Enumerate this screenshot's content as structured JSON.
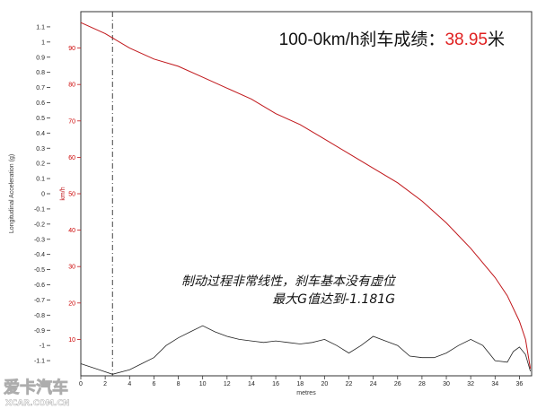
{
  "headline": {
    "prefix": "100-0km/h刹车成绩：",
    "value": "38.95",
    "suffix": "米"
  },
  "annotation": {
    "line1": "制动过程非常线性，刹车基本没有虚位",
    "line2": "最大G值达到-1.181G"
  },
  "watermark": {
    "logo": "爱卡汽车",
    "site": "XCAR.COM.CN"
  },
  "colors": {
    "speed": "#c0161a",
    "accel": "#222222",
    "accent_text": "#e02020",
    "marker": "#444444"
  },
  "chart_data": {
    "type": "line",
    "xlabel": "metres",
    "ylabel_left": "Longitudinal Acceleration (g)",
    "ylabel_right": "km/h",
    "xlim": [
      0,
      37
    ],
    "ylim_left": [
      -1.2,
      1.2
    ],
    "ylim_right": [
      0,
      100
    ],
    "x_ticks": [
      0,
      2,
      4,
      6,
      8,
      10,
      12,
      14,
      16,
      18,
      20,
      22,
      24,
      26,
      28,
      30,
      32,
      34,
      36
    ],
    "left_ticks": [
      "1.1",
      "1",
      "0.9",
      "0.8",
      "0.7",
      "0.6",
      "0.5",
      "0.4",
      "0.3",
      "0.2",
      "0.1",
      "0",
      "-0.1",
      "-0.2",
      "-0.3",
      "-0.4",
      "-0.5",
      "-0.6",
      "-0.7",
      "-0.8",
      "-0.9",
      "-1",
      "-1.1"
    ],
    "right_ticks": [
      "90",
      "80",
      "70",
      "60",
      "50",
      "40",
      "30",
      "20",
      "10"
    ],
    "marker_x": 2.6,
    "grid": false,
    "series": [
      {
        "axis": "right",
        "x": [
          0,
          2,
          4,
          6,
          8,
          10,
          12,
          14,
          16,
          18,
          20,
          22,
          24,
          26,
          28,
          30,
          32,
          34,
          35,
          36,
          36.5,
          36.9
        ],
        "values": [
          97,
          94,
          90,
          87,
          85,
          82,
          79,
          76,
          72,
          69,
          65,
          61,
          57,
          53,
          48,
          42,
          35,
          27,
          22,
          15,
          10,
          2
        ]
      },
      {
        "axis": "left",
        "x": [
          0,
          1.5,
          2.6,
          4,
          5,
          6,
          7,
          8,
          9,
          10,
          11,
          12,
          13,
          14,
          15,
          16,
          17,
          18,
          19,
          20,
          21,
          22,
          23,
          24,
          25,
          26,
          27,
          28,
          29,
          30,
          31,
          32,
          33,
          34,
          35,
          35.5,
          36,
          36.5,
          36.9
        ],
        "values": [
          -1.12,
          -1.16,
          -1.19,
          -1.16,
          -1.12,
          -1.08,
          -1.0,
          -0.95,
          -0.91,
          -0.87,
          -0.91,
          -0.94,
          -0.96,
          -0.97,
          -0.98,
          -0.97,
          -0.98,
          -0.99,
          -0.98,
          -0.96,
          -1.0,
          -1.05,
          -1.0,
          -0.94,
          -0.97,
          -1.0,
          -1.07,
          -1.08,
          -1.08,
          -1.05,
          -1.0,
          -0.96,
          -1.0,
          -1.1,
          -1.11,
          -1.04,
          -1.01,
          -1.06,
          -1.17
        ]
      }
    ]
  }
}
